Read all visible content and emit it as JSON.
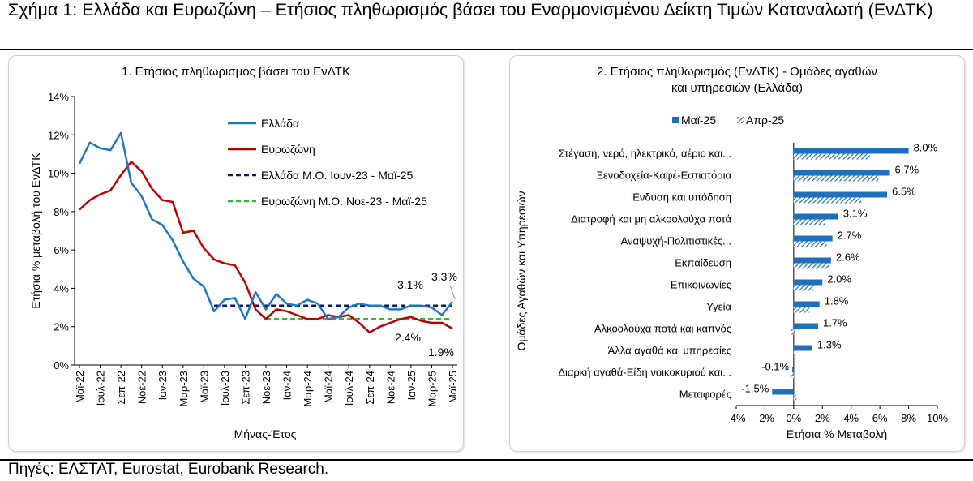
{
  "figure": {
    "title": "Σχήμα 1: Ελλάδα και Ευρωζώνη – Ετήσιος πληθωρισμός βάσει του Εναρμονισμένου Δείκτη Τιμών Καταναλωτή (ΕνΔΤΚ)",
    "source": "Πηγές: ΕΛΣΤΑΤ, Eurostat, Eurobank Research."
  },
  "colors": {
    "greece": "#1f77c0",
    "eurozone": "#c00000",
    "greece_avg": "#0d1a63",
    "eurozone_avg": "#2bbd3a",
    "bar_may": "#1f6fba",
    "bar_apr": "#1f6fba"
  },
  "chart_data": [
    {
      "type": "line",
      "title": "1. Ετήσιος πληθωρισμός βάσει του ΕνΔΤΚ",
      "xlabel": "Μήνας-Έτος",
      "ylabel": "Ετήσια % μεταβολή του ΕνΔΤΚ",
      "ylim": [
        0,
        14
      ],
      "yticks": [
        "0%",
        "2%",
        "4%",
        "6%",
        "8%",
        "10%",
        "12%",
        "14%"
      ],
      "xtick_labels": [
        "Μαϊ-22",
        "Ιουλ-22",
        "Σεπ-22",
        "Νοε-22",
        "Ιαν-23",
        "Μαρ-23",
        "Μαϊ-23",
        "Ιουλ-23",
        "Σεπ-23",
        "Νοε-23",
        "Ιαν-24",
        "Μαρ-24",
        "Μαϊ-24",
        "Ιουλ-24",
        "Σεπ-24",
        "Νοε-24",
        "Ιαν-25",
        "Μαρ-25",
        "Μαϊ-25"
      ],
      "x": [
        "2022-05",
        "2022-06",
        "2022-07",
        "2022-08",
        "2022-09",
        "2022-10",
        "2022-11",
        "2022-12",
        "2023-01",
        "2023-02",
        "2023-03",
        "2023-04",
        "2023-05",
        "2023-06",
        "2023-07",
        "2023-08",
        "2023-09",
        "2023-10",
        "2023-11",
        "2023-12",
        "2024-01",
        "2024-02",
        "2024-03",
        "2024-04",
        "2024-05",
        "2024-06",
        "2024-07",
        "2024-08",
        "2024-09",
        "2024-10",
        "2024-11",
        "2024-12",
        "2025-01",
        "2025-02",
        "2025-03",
        "2025-04",
        "2025-05"
      ],
      "grid": false,
      "legend_position": "top-right",
      "series": [
        {
          "name": "Ελλάδα",
          "values": [
            10.5,
            11.6,
            11.3,
            11.2,
            12.1,
            9.5,
            8.8,
            7.6,
            7.3,
            6.5,
            5.4,
            4.5,
            4.1,
            2.8,
            3.4,
            3.5,
            2.4,
            3.8,
            2.9,
            3.7,
            3.2,
            3.1,
            3.4,
            3.2,
            2.4,
            2.5,
            3.0,
            3.2,
            3.1,
            3.1,
            2.9,
            2.9,
            3.1,
            3.1,
            3.0,
            2.6,
            3.3
          ]
        },
        {
          "name": "Ευρωζώνη",
          "values": [
            8.1,
            8.6,
            8.9,
            9.1,
            9.9,
            10.6,
            10.1,
            9.2,
            8.6,
            8.5,
            6.9,
            7.0,
            6.1,
            5.5,
            5.3,
            5.2,
            4.3,
            2.9,
            2.4,
            2.9,
            2.8,
            2.6,
            2.4,
            2.4,
            2.6,
            2.5,
            2.6,
            2.2,
            1.7,
            2.0,
            2.2,
            2.4,
            2.5,
            2.3,
            2.2,
            2.2,
            1.9
          ]
        },
        {
          "name": "Ελλάδα Μ.Ο. Ιουν-23 - Μαϊ-25",
          "value": 3.1,
          "from": "2023-06",
          "to": "2025-05",
          "style": "dashed"
        },
        {
          "name": "Ευρωζώνη Μ.Ο. Νοε-23 - Μαϊ-25",
          "value": 2.4,
          "from": "2023-11",
          "to": "2025-05",
          "style": "dashed"
        }
      ],
      "annotations": [
        "3.1%",
        "3.3%",
        "2.4%",
        "1.9%"
      ]
    },
    {
      "type": "bar",
      "orientation": "horizontal",
      "title": "2. Ετήσιος πληθωρισμός (ΕνΔΤΚ) - Ομάδες αγαθών και υπηρεσιών (Ελλάδα)",
      "xlabel": "Ετήσια % Μεταβολή",
      "ylabel": "Ομάδες Αγαθών και Υπηρεσιών",
      "xlim": [
        -4,
        10
      ],
      "xticks": [
        "-4%",
        "-2%",
        "0%",
        "2%",
        "4%",
        "6%",
        "8%",
        "10%"
      ],
      "legend_position": "top-left",
      "categories": [
        "Στέγαση, νερό, ηλεκτρικό, αέριο και...",
        "Ξενοδοχεία-Καφέ-Εστιατόρια",
        "Ένδυση και υπόδηση",
        "Διατροφή και μη αλκοολούχα ποτά",
        "Αναψυχή-Πολιτιστικές...",
        "Εκπαίδευση",
        "Επικοινωνίες",
        "Υγεία",
        "Αλκοολούχα ποτά και καπνός",
        "Άλλα αγαθά και υπηρεσίες",
        "Διαρκή αγαθά-Είδη νοικοκυριού και...",
        "Μεταφορές"
      ],
      "series": [
        {
          "name": "Μαϊ-25",
          "values": [
            8.0,
            6.7,
            6.5,
            3.1,
            2.7,
            2.6,
            2.0,
            1.8,
            1.7,
            1.3,
            -0.1,
            -1.5
          ],
          "labels": [
            "8.0%",
            "6.7%",
            "6.5%",
            "3.1%",
            "2.7%",
            "2.6%",
            "2.0%",
            "1.8%",
            "1.7%",
            "1.3%",
            "-0.1%",
            "-1.5%"
          ]
        },
        {
          "name": "Απρ-25",
          "values": [
            5.3,
            5.9,
            4.7,
            2.2,
            2.3,
            2.5,
            1.4,
            1.1,
            -0.2,
            0.0,
            -0.2,
            0.2
          ]
        }
      ]
    }
  ]
}
